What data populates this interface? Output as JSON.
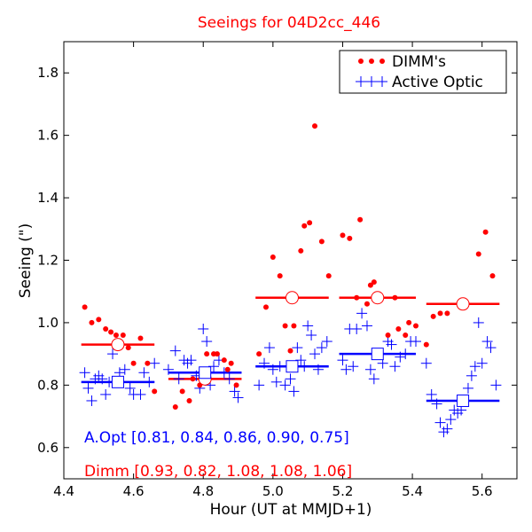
{
  "chart_data": {
    "type": "scatter",
    "title": "Seeings for 04D2cc_446",
    "xlabel": "Hour (UT at MMJD+1)",
    "ylabel": "Seeing (\")",
    "xlim": [
      4.4,
      5.7
    ],
    "ylim": [
      0.5,
      1.9
    ],
    "xticks": [
      4.4,
      4.6,
      4.8,
      5.0,
      5.2,
      5.4,
      5.6
    ],
    "yticks": [
      0.6,
      0.8,
      1.0,
      1.2,
      1.4,
      1.6,
      1.8
    ],
    "grid": false,
    "legend": {
      "position": "top-right",
      "entries": [
        {
          "label": "DIMM's",
          "color": "#ff0000",
          "marker": "dot"
        },
        {
          "label": "Active Optic",
          "color": "#0000ff",
          "marker": "plus"
        }
      ]
    },
    "colors": {
      "dimm": "#ff0000",
      "aopt": "#0000ff",
      "title": "#ff0000"
    },
    "annotations": {
      "aopt": "A.Opt [0.81, 0.84, 0.86, 0.90, 0.75]",
      "dimm": "Dimm [0.93, 0.82, 1.08, 1.08, 1.06]"
    },
    "series": [
      {
        "name": "DIMM's",
        "points": [
          [
            4.46,
            1.05
          ],
          [
            4.48,
            1.0
          ],
          [
            4.5,
            1.01
          ],
          [
            4.52,
            0.98
          ],
          [
            4.535,
            0.97
          ],
          [
            4.55,
            0.96
          ],
          [
            4.57,
            0.96
          ],
          [
            4.585,
            0.92
          ],
          [
            4.6,
            0.87
          ],
          [
            4.62,
            0.95
          ],
          [
            4.64,
            0.87
          ],
          [
            4.66,
            0.78
          ],
          [
            4.72,
            0.73
          ],
          [
            4.74,
            0.78
          ],
          [
            4.76,
            0.75
          ],
          [
            4.77,
            0.82
          ],
          [
            4.79,
            0.8
          ],
          [
            4.8,
            0.84
          ],
          [
            4.81,
            0.9
          ],
          [
            4.83,
            0.9
          ],
          [
            4.84,
            0.9
          ],
          [
            4.86,
            0.88
          ],
          [
            4.87,
            0.85
          ],
          [
            4.88,
            0.87
          ],
          [
            4.895,
            0.8
          ],
          [
            4.96,
            0.9
          ],
          [
            4.98,
            1.05
          ],
          [
            5.0,
            1.21
          ],
          [
            5.02,
            1.15
          ],
          [
            5.035,
            0.99
          ],
          [
            5.05,
            0.91
          ],
          [
            5.06,
            0.99
          ],
          [
            5.08,
            1.23
          ],
          [
            5.09,
            1.31
          ],
          [
            5.105,
            1.32
          ],
          [
            5.12,
            1.63
          ],
          [
            5.14,
            1.26
          ],
          [
            5.16,
            1.15
          ],
          [
            5.2,
            1.28
          ],
          [
            5.22,
            1.27
          ],
          [
            5.24,
            1.08
          ],
          [
            5.25,
            1.33
          ],
          [
            5.27,
            1.06
          ],
          [
            5.28,
            1.12
          ],
          [
            5.29,
            1.13
          ],
          [
            5.31,
            1.08
          ],
          [
            5.33,
            0.96
          ],
          [
            5.35,
            1.08
          ],
          [
            5.36,
            0.98
          ],
          [
            5.38,
            0.96
          ],
          [
            5.39,
            1.0
          ],
          [
            5.41,
            0.99
          ],
          [
            5.44,
            0.93
          ],
          [
            5.46,
            1.02
          ],
          [
            5.48,
            1.03
          ],
          [
            5.5,
            1.03
          ],
          [
            5.59,
            1.22
          ],
          [
            5.61,
            1.29
          ],
          [
            5.63,
            1.15
          ]
        ]
      },
      {
        "name": "Active Optic",
        "points": [
          [
            4.46,
            0.84
          ],
          [
            4.47,
            0.79
          ],
          [
            4.48,
            0.75
          ],
          [
            4.49,
            0.82
          ],
          [
            4.5,
            0.83
          ],
          [
            4.51,
            0.82
          ],
          [
            4.52,
            0.77
          ],
          [
            4.53,
            0.81
          ],
          [
            4.54,
            0.9
          ],
          [
            4.56,
            0.84
          ],
          [
            4.575,
            0.85
          ],
          [
            4.59,
            0.79
          ],
          [
            4.6,
            0.77
          ],
          [
            4.62,
            0.77
          ],
          [
            4.63,
            0.84
          ],
          [
            4.645,
            0.81
          ],
          [
            4.66,
            0.87
          ],
          [
            4.7,
            0.85
          ],
          [
            4.72,
            0.91
          ],
          [
            4.73,
            0.82
          ],
          [
            4.745,
            0.88
          ],
          [
            4.755,
            0.87
          ],
          [
            4.765,
            0.88
          ],
          [
            4.78,
            0.83
          ],
          [
            4.79,
            0.79
          ],
          [
            4.8,
            0.98
          ],
          [
            4.81,
            0.94
          ],
          [
            4.82,
            0.8
          ],
          [
            4.83,
            0.86
          ],
          [
            4.845,
            0.88
          ],
          [
            4.86,
            0.84
          ],
          [
            4.875,
            0.82
          ],
          [
            4.89,
            0.78
          ],
          [
            4.9,
            0.76
          ],
          [
            4.96,
            0.8
          ],
          [
            4.975,
            0.87
          ],
          [
            4.99,
            0.92
          ],
          [
            5.0,
            0.85
          ],
          [
            5.01,
            0.81
          ],
          [
            5.02,
            0.86
          ],
          [
            5.035,
            0.8
          ],
          [
            5.05,
            0.82
          ],
          [
            5.06,
            0.78
          ],
          [
            5.07,
            0.92
          ],
          [
            5.08,
            0.88
          ],
          [
            5.09,
            0.86
          ],
          [
            5.1,
            0.99
          ],
          [
            5.11,
            0.96
          ],
          [
            5.12,
            0.9
          ],
          [
            5.13,
            0.85
          ],
          [
            5.14,
            0.92
          ],
          [
            5.155,
            0.94
          ],
          [
            5.2,
            0.88
          ],
          [
            5.21,
            0.85
          ],
          [
            5.22,
            0.98
          ],
          [
            5.23,
            0.86
          ],
          [
            5.24,
            0.98
          ],
          [
            5.255,
            1.03
          ],
          [
            5.27,
            0.99
          ],
          [
            5.28,
            0.85
          ],
          [
            5.29,
            0.82
          ],
          [
            5.3,
            0.9
          ],
          [
            5.315,
            0.87
          ],
          [
            5.33,
            0.94
          ],
          [
            5.34,
            0.93
          ],
          [
            5.35,
            0.86
          ],
          [
            5.365,
            0.89
          ],
          [
            5.38,
            0.9
          ],
          [
            5.395,
            0.94
          ],
          [
            5.41,
            0.94
          ],
          [
            5.44,
            0.87
          ],
          [
            5.455,
            0.77
          ],
          [
            5.47,
            0.74
          ],
          [
            5.48,
            0.68
          ],
          [
            5.49,
            0.65
          ],
          [
            5.5,
            0.66
          ],
          [
            5.51,
            0.69
          ],
          [
            5.52,
            0.72
          ],
          [
            5.53,
            0.71
          ],
          [
            5.54,
            0.72
          ],
          [
            5.56,
            0.79
          ],
          [
            5.57,
            0.83
          ],
          [
            5.58,
            0.86
          ],
          [
            5.59,
            1.0
          ],
          [
            5.6,
            0.87
          ],
          [
            5.615,
            0.94
          ],
          [
            5.625,
            0.92
          ],
          [
            5.64,
            0.8
          ]
        ]
      }
    ],
    "segments": {
      "dimm": [
        {
          "x0": 4.45,
          "x1": 4.66,
          "y": 0.93
        },
        {
          "x0": 4.7,
          "x1": 4.91,
          "y": 0.82
        },
        {
          "x0": 4.95,
          "x1": 5.16,
          "y": 1.08
        },
        {
          "x0": 5.19,
          "x1": 5.41,
          "y": 1.08
        },
        {
          "x0": 5.44,
          "x1": 5.65,
          "y": 1.06
        }
      ],
      "aopt": [
        {
          "x0": 4.45,
          "x1": 4.66,
          "y": 0.81
        },
        {
          "x0": 4.7,
          "x1": 4.91,
          "y": 0.84
        },
        {
          "x0": 4.95,
          "x1": 5.16,
          "y": 0.86
        },
        {
          "x0": 5.19,
          "x1": 5.41,
          "y": 0.9
        },
        {
          "x0": 5.44,
          "x1": 5.65,
          "y": 0.75
        }
      ]
    },
    "means": {
      "dimm": [
        {
          "x": 4.555,
          "y": 0.93
        },
        {
          "x": 4.805,
          "y": 0.82
        },
        {
          "x": 5.055,
          "y": 1.08
        },
        {
          "x": 5.3,
          "y": 1.08
        },
        {
          "x": 5.545,
          "y": 1.06
        }
      ],
      "aopt": [
        {
          "x": 4.555,
          "y": 0.81
        },
        {
          "x": 4.805,
          "y": 0.84
        },
        {
          "x": 5.055,
          "y": 0.86
        },
        {
          "x": 5.3,
          "y": 0.9
        },
        {
          "x": 5.545,
          "y": 0.75
        }
      ]
    }
  }
}
